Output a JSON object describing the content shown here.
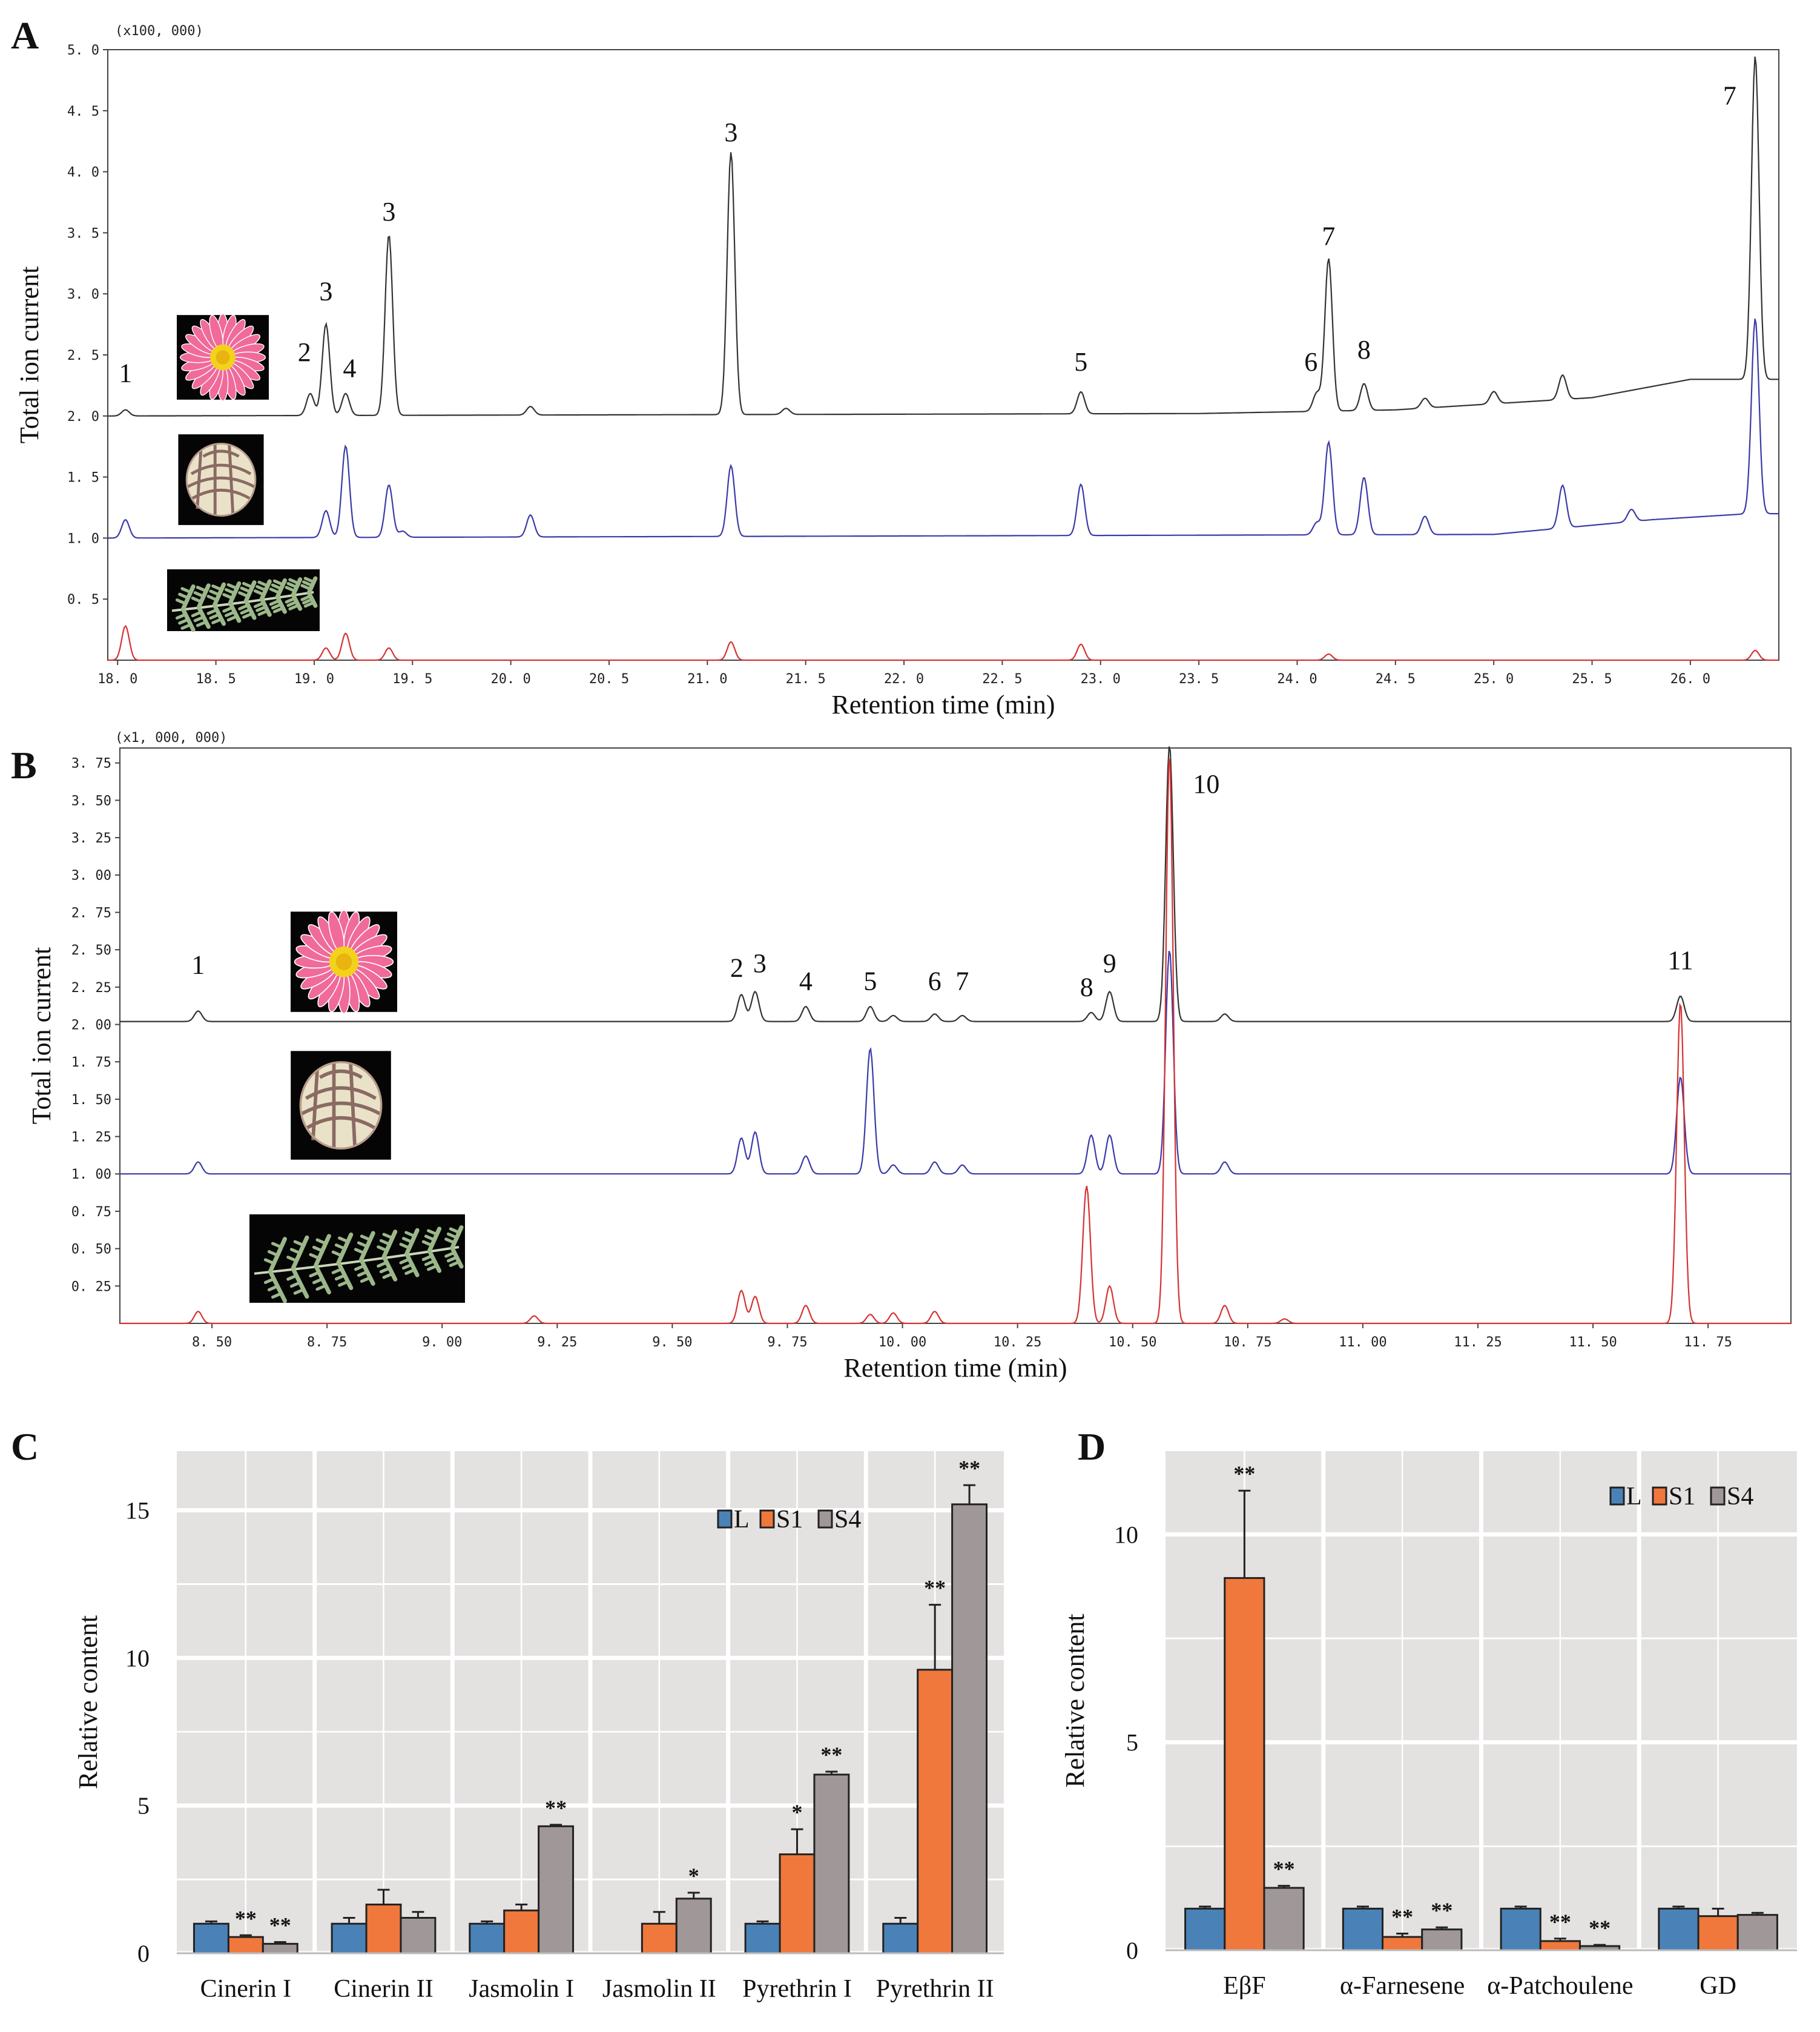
{
  "chart_data": [
    {
      "panel": "A",
      "type": "line",
      "multiplier": "(x100, 000)",
      "xlabel": "Retention time (min)",
      "ylabel": "Total ion current",
      "xlim": [
        17.95,
        26.45
      ],
      "ylim": [
        0.0,
        5.0
      ],
      "xticks": [
        18.0,
        18.5,
        19.0,
        19.5,
        20.0,
        20.5,
        21.0,
        21.5,
        22.0,
        22.5,
        23.0,
        23.5,
        24.0,
        24.5,
        25.0,
        25.5,
        26.0
      ],
      "xtick_labels": [
        "18. 0",
        "18. 5",
        "19. 0",
        "19. 5",
        "20. 0",
        "20. 5",
        "21. 0",
        "21. 5",
        "22. 0",
        "22. 5",
        "23. 0",
        "23. 5",
        "24. 0",
        "24. 5",
        "25. 0",
        "25. 5",
        "26. 0"
      ],
      "yticks": [
        0.5,
        1.0,
        1.5,
        2.0,
        2.5,
        3.0,
        3.5,
        4.0,
        4.5,
        5.0
      ],
      "ytick_labels": [
        "0. 5",
        "1. 0",
        "1. 5",
        "2. 0",
        "2. 5",
        "3. 0",
        "3. 5",
        "4. 0",
        "4. 5",
        "5. 0"
      ],
      "series": [
        {
          "color": "#333333",
          "baseline": 2.0,
          "drift": [
            [
              23.5,
              2.02
            ],
            [
              24.5,
              2.05
            ],
            [
              25.5,
              2.15
            ],
            [
              26.0,
              2.3
            ],
            [
              26.3,
              2.3
            ]
          ],
          "peaks": [
            [
              18.04,
              0.05
            ],
            [
              18.98,
              0.18
            ],
            [
              19.06,
              0.75
            ],
            [
              19.16,
              0.18
            ],
            [
              19.38,
              1.48
            ],
            [
              20.1,
              0.07
            ],
            [
              21.12,
              2.15
            ],
            [
              21.4,
              0.05
            ],
            [
              22.9,
              0.18
            ],
            [
              24.1,
              0.15
            ],
            [
              24.16,
              1.25
            ],
            [
              24.34,
              0.22
            ],
            [
              24.65,
              0.08
            ],
            [
              25.0,
              0.1
            ],
            [
              25.35,
              0.2
            ],
            [
              26.33,
              2.65
            ]
          ]
        },
        {
          "color": "#3a3aa8",
          "baseline": 1.0,
          "drift": [
            [
              25.0,
              1.03
            ],
            [
              25.8,
              1.15
            ],
            [
              26.3,
              1.2
            ]
          ],
          "peaks": [
            [
              18.04,
              0.15
            ],
            [
              19.06,
              0.22
            ],
            [
              19.16,
              0.75
            ],
            [
              19.38,
              0.43
            ],
            [
              19.45,
              0.05
            ],
            [
              20.1,
              0.18
            ],
            [
              21.12,
              0.58
            ],
            [
              22.9,
              0.42
            ],
            [
              24.1,
              0.1
            ],
            [
              24.16,
              0.76
            ],
            [
              24.34,
              0.47
            ],
            [
              24.65,
              0.15
            ],
            [
              25.35,
              0.35
            ],
            [
              25.7,
              0.1
            ],
            [
              26.33,
              1.6
            ]
          ]
        },
        {
          "color": "#d63232",
          "baseline": 0.0,
          "drift": [],
          "peaks": [
            [
              18.04,
              0.28
            ],
            [
              19.06,
              0.1
            ],
            [
              19.16,
              0.22
            ],
            [
              19.38,
              0.1
            ],
            [
              21.12,
              0.15
            ],
            [
              22.9,
              0.13
            ],
            [
              24.16,
              0.05
            ],
            [
              26.33,
              0.08
            ]
          ]
        }
      ],
      "peak_labels": [
        {
          "text": "1",
          "x": 18.04,
          "y": 2.28
        },
        {
          "text": "2",
          "x": 18.95,
          "y": 2.45
        },
        {
          "text": "3",
          "x": 19.06,
          "y": 2.95
        },
        {
          "text": "4",
          "x": 19.18,
          "y": 2.32
        },
        {
          "text": "3",
          "x": 19.38,
          "y": 3.6
        },
        {
          "text": "3",
          "x": 21.12,
          "y": 4.25
        },
        {
          "text": "5",
          "x": 22.9,
          "y": 2.37
        },
        {
          "text": "6",
          "x": 24.07,
          "y": 2.37
        },
        {
          "text": "7",
          "x": 24.16,
          "y": 3.4
        },
        {
          "text": "8",
          "x": 24.34,
          "y": 2.47
        },
        {
          "text": "7",
          "x": 26.2,
          "y": 4.55
        }
      ]
    },
    {
      "panel": "B",
      "type": "line",
      "multiplier": "(x1, 000, 000)",
      "xlabel": "Retention time (min)",
      "ylabel": "Total ion current",
      "xlim": [
        8.3,
        11.93
      ],
      "ylim": [
        0.0,
        3.85
      ],
      "xticks": [
        8.5,
        8.75,
        9.0,
        9.25,
        9.5,
        9.75,
        10.0,
        10.25,
        10.5,
        10.75,
        11.0,
        11.25,
        11.5,
        11.75
      ],
      "xtick_labels": [
        "8. 50",
        "8. 75",
        "9. 00",
        "9. 25",
        "9. 50",
        "9. 75",
        "10. 00",
        "10. 25",
        "10. 50",
        "10. 75",
        "11. 00",
        "11. 25",
        "11. 50",
        "11. 75"
      ],
      "yticks": [
        0.25,
        0.5,
        0.75,
        1.0,
        1.25,
        1.5,
        1.75,
        2.0,
        2.25,
        2.5,
        2.75,
        3.0,
        3.25,
        3.5,
        3.75
      ],
      "ytick_labels": [
        "0. 25",
        "0. 50",
        "0. 75",
        "1. 00",
        "1. 25",
        "1. 50",
        "1. 75",
        "2. 00",
        "2. 25",
        "2. 50",
        "2. 75",
        "3. 00",
        "3. 25",
        "3. 50",
        "3. 75"
      ],
      "series": [
        {
          "color": "#333333",
          "baseline": 2.02,
          "drift": [],
          "peaks": [
            [
              8.47,
              0.07
            ],
            [
              9.65,
              0.18
            ],
            [
              9.68,
              0.2
            ],
            [
              9.79,
              0.1
            ],
            [
              9.93,
              0.1
            ],
            [
              9.98,
              0.04
            ],
            [
              10.07,
              0.05
            ],
            [
              10.13,
              0.04
            ],
            [
              10.41,
              0.06
            ],
            [
              10.45,
              0.2
            ],
            [
              10.58,
              1.85
            ],
            [
              10.7,
              0.05
            ],
            [
              11.69,
              0.17
            ]
          ]
        },
        {
          "color": "#3a3aa8",
          "baseline": 1.0,
          "drift": [],
          "peaks": [
            [
              8.47,
              0.08
            ],
            [
              9.65,
              0.24
            ],
            [
              9.68,
              0.28
            ],
            [
              9.79,
              0.12
            ],
            [
              9.93,
              0.84
            ],
            [
              9.98,
              0.06
            ],
            [
              10.07,
              0.08
            ],
            [
              10.13,
              0.06
            ],
            [
              10.41,
              0.26
            ],
            [
              10.45,
              0.26
            ],
            [
              10.58,
              1.5
            ],
            [
              10.7,
              0.08
            ],
            [
              11.69,
              0.65
            ]
          ]
        },
        {
          "color": "#d63232",
          "baseline": 0.0,
          "drift": [],
          "peaks": [
            [
              8.47,
              0.08
            ],
            [
              9.2,
              0.05
            ],
            [
              9.65,
              0.22
            ],
            [
              9.68,
              0.18
            ],
            [
              9.79,
              0.12
            ],
            [
              9.93,
              0.06
            ],
            [
              9.98,
              0.07
            ],
            [
              10.07,
              0.08
            ],
            [
              10.4,
              0.92
            ],
            [
              10.45,
              0.25
            ],
            [
              10.58,
              3.8
            ],
            [
              10.7,
              0.12
            ],
            [
              10.83,
              0.03
            ],
            [
              11.69,
              2.15
            ]
          ]
        }
      ],
      "peak_labels": [
        {
          "text": "1",
          "x": 8.47,
          "y": 2.34
        },
        {
          "text": "2",
          "x": 9.64,
          "y": 2.32
        },
        {
          "text": "3",
          "x": 9.69,
          "y": 2.35
        },
        {
          "text": "4",
          "x": 9.79,
          "y": 2.23
        },
        {
          "text": "5",
          "x": 9.93,
          "y": 2.23
        },
        {
          "text": "6",
          "x": 10.07,
          "y": 2.23
        },
        {
          "text": "7",
          "x": 10.13,
          "y": 2.23
        },
        {
          "text": "8",
          "x": 10.4,
          "y": 2.19
        },
        {
          "text": "9",
          "x": 10.45,
          "y": 2.35
        },
        {
          "text": "10",
          "x": 10.66,
          "y": 3.55
        },
        {
          "text": "11",
          "x": 11.69,
          "y": 2.37
        }
      ]
    },
    {
      "panel": "C",
      "type": "bar",
      "ylabel": "Relative   content",
      "ylim": [
        0,
        17
      ],
      "yticks": [
        0,
        5,
        10,
        15
      ],
      "categories": [
        "Cinerin  I",
        "Cinerin II",
        "Jasmolin I",
        "Jasmolin II",
        "Pyrethrin I",
        "Pyrethrin II"
      ],
      "legend": [
        "L",
        "S1",
        "S4"
      ],
      "legend_position": "top-right",
      "series": [
        {
          "name": "L",
          "color": "#4a82b8",
          "values": [
            1.0,
            1.0,
            1.0,
            0.0,
            1.0,
            1.0
          ],
          "errors": [
            0.08,
            0.2,
            0.08,
            0.0,
            0.08,
            0.2
          ],
          "stars": [
            "",
            "",
            "",
            "",
            "",
            ""
          ]
        },
        {
          "name": "S1",
          "color": "#f0783c",
          "values": [
            0.55,
            1.65,
            1.45,
            1.0,
            3.35,
            9.6
          ],
          "errors": [
            0.06,
            0.5,
            0.2,
            0.4,
            0.85,
            2.2
          ],
          "stars": [
            "**",
            "",
            "",
            "",
            "*",
            "**"
          ]
        },
        {
          "name": "S4",
          "color": "#a09898",
          "values": [
            0.32,
            1.2,
            4.3,
            1.85,
            6.05,
            15.2
          ],
          "errors": [
            0.06,
            0.2,
            0.05,
            0.2,
            0.1,
            0.65
          ],
          "stars": [
            "**",
            "",
            "**",
            "*",
            "**",
            "**"
          ]
        }
      ]
    },
    {
      "panel": "D",
      "type": "bar",
      "ylabel": "Relative   content",
      "ylim": [
        0,
        12
      ],
      "yticks": [
        0,
        5,
        10
      ],
      "categories": [
        "EβF",
        "α-Farnesene",
        "α-Patchoulene",
        "GD"
      ],
      "legend": [
        "L",
        "S1",
        "S4"
      ],
      "legend_position": "top-right",
      "series": [
        {
          "name": "L",
          "color": "#4a82b8",
          "values": [
            1.0,
            1.0,
            1.0,
            1.0
          ],
          "errors": [
            0.05,
            0.05,
            0.05,
            0.05
          ],
          "stars": [
            "",
            "",
            "",
            ""
          ]
        },
        {
          "name": "S1",
          "color": "#f0783c",
          "values": [
            8.95,
            0.32,
            0.22,
            0.82
          ],
          "errors": [
            2.1,
            0.08,
            0.06,
            0.18
          ],
          "stars": [
            "**",
            "**",
            "**",
            ""
          ]
        },
        {
          "name": "S4",
          "color": "#a09898",
          "values": [
            1.5,
            0.5,
            0.1,
            0.85
          ],
          "errors": [
            0.05,
            0.05,
            0.03,
            0.05
          ],
          "stars": [
            "**",
            "**",
            "**",
            ""
          ]
        }
      ]
    }
  ],
  "images": [
    {
      "panel": "A",
      "kind": "pink-flower-icon"
    },
    {
      "panel": "A",
      "kind": "flower-bud-icon"
    },
    {
      "panel": "A",
      "kind": "leaf-icon"
    },
    {
      "panel": "B",
      "kind": "pink-flower-icon"
    },
    {
      "panel": "B",
      "kind": "flower-bud-icon"
    },
    {
      "panel": "B",
      "kind": "leaf-icon"
    }
  ]
}
